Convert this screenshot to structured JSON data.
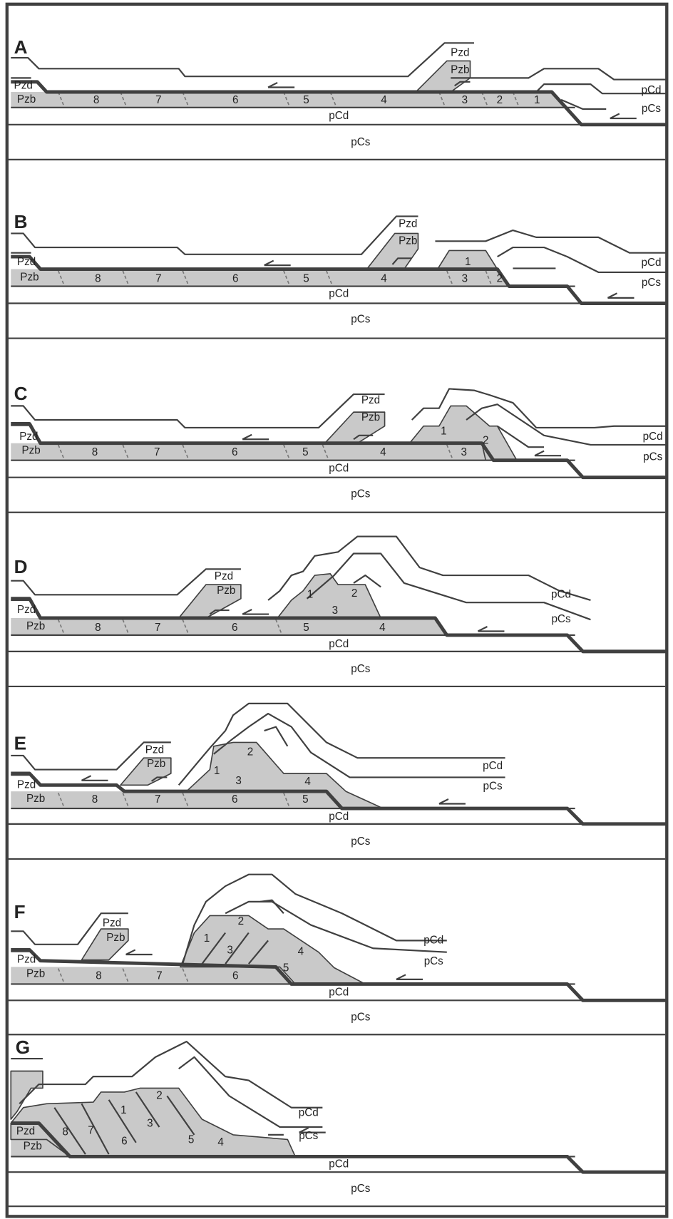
{
  "panels": [
    {
      "label": "A",
      "texts": [
        "Pzd",
        "Pzb",
        "Pzd",
        "Pzb",
        "8",
        "7",
        "6",
        "5",
        "4",
        "3",
        "2",
        "1",
        "pCd",
        "pCs",
        "pCd",
        "pCs"
      ]
    },
    {
      "label": "B",
      "texts": [
        "Pzd",
        "Pzb",
        "1",
        "Pzd",
        "Pzb",
        "8",
        "7",
        "6",
        "5",
        "4",
        "3",
        "2",
        "pCd",
        "pCs",
        "pCd",
        "pCs"
      ]
    },
    {
      "label": "C",
      "texts": [
        "Pzd",
        "Pzb",
        "1",
        "2",
        "Pzd",
        "Pzb",
        "8",
        "7",
        "6",
        "5",
        "4",
        "3",
        "pCd",
        "pCs",
        "pCd",
        "pCs"
      ]
    },
    {
      "label": "D",
      "texts": [
        "Pzd",
        "Pzb",
        "1",
        "2",
        "3",
        "Pzd",
        "Pzb",
        "8",
        "7",
        "6",
        "5",
        "4",
        "pCd",
        "pCs",
        "pCd",
        "pCs"
      ]
    },
    {
      "label": "E",
      "texts": [
        "Pzd",
        "Pzb",
        "1",
        "2",
        "3",
        "4",
        "Pzd",
        "Pzb",
        "8",
        "7",
        "6",
        "5",
        "pCd",
        "pCs",
        "pCd",
        "pCs"
      ]
    },
    {
      "label": "F",
      "texts": [
        "Pzd",
        "Pzb",
        "1",
        "2",
        "3",
        "4",
        "5",
        "Pzd",
        "Pzb",
        "8",
        "7",
        "6",
        "pCd",
        "pCs",
        "pCd",
        "pCs"
      ]
    },
    {
      "label": "G",
      "texts": [
        "1",
        "2",
        "3",
        "4",
        "5",
        "6",
        "7",
        "8",
        "Pzd",
        "Pzb",
        "pCd",
        "pCs",
        "pCd",
        "pCs"
      ]
    }
  ]
}
